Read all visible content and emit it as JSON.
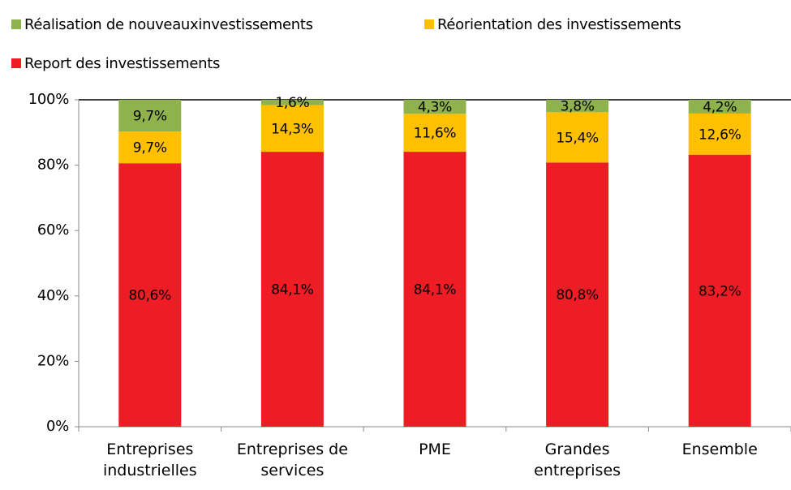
{
  "chart_data": {
    "type": "stacked_bar",
    "categories": [
      "Entreprises industrielles",
      "Entreprises de services",
      "PME",
      "Grandes entreprises",
      "Ensemble"
    ],
    "series": [
      {
        "name": "Report des investissements",
        "color": "#ee1c25",
        "values": [
          80.6,
          84.1,
          84.1,
          80.8,
          83.2
        ],
        "value_labels": [
          "80,6%",
          "84,1%",
          "84,1%",
          "80,8%",
          "83,2%"
        ]
      },
      {
        "name": "Réorientation des investissements",
        "color": "#ffc000",
        "values": [
          9.7,
          14.3,
          11.6,
          15.4,
          12.6
        ],
        "value_labels": [
          "9,7%",
          "14,3%",
          "11,6%",
          "15,4%",
          "12,6%"
        ]
      },
      {
        "name": "Réalisation de nouveauxinvestissements",
        "color": "#8fb24c",
        "values": [
          9.7,
          1.6,
          4.3,
          3.8,
          4.2
        ],
        "value_labels": [
          "9,7%",
          "1,6%",
          "4,3%",
          "3,8%",
          "4,2%"
        ]
      }
    ],
    "ylim": [
      0,
      100
    ],
    "yticks": [
      {
        "value": 0,
        "label": "0%"
      },
      {
        "value": 20,
        "label": "20%"
      },
      {
        "value": 40,
        "label": "40%"
      },
      {
        "value": 60,
        "label": "60%"
      },
      {
        "value": 80,
        "label": "80%"
      },
      {
        "value": 100,
        "label": "100%"
      }
    ],
    "legend": "top"
  }
}
